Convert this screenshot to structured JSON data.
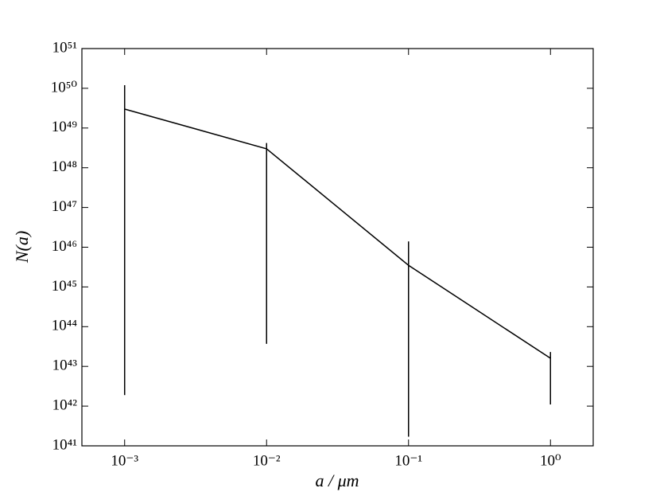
{
  "chart_data": {
    "type": "errorbar",
    "xlabel": "a / μm",
    "ylabel": "N(a)",
    "xscale": "log",
    "yscale": "log",
    "xlim": [
      0.0005,
      2
    ],
    "ylim": [
      1e+41,
      1e+51
    ],
    "xticks": [
      {
        "value": 0.001,
        "label": "10⁻³"
      },
      {
        "value": 0.01,
        "label": "10⁻²"
      },
      {
        "value": 0.1,
        "label": "10⁻¹"
      },
      {
        "value": 1,
        "label": "10⁰"
      }
    ],
    "yticks": [
      {
        "value": 1e+41,
        "label": "10⁴¹"
      },
      {
        "value": 1e+42,
        "label": "10⁴²"
      },
      {
        "value": 1e+43,
        "label": "10⁴³"
      },
      {
        "value": 1e+44,
        "label": "10⁴⁴"
      },
      {
        "value": 1e+45,
        "label": "10⁴⁵"
      },
      {
        "value": 1e+46,
        "label": "10⁴⁶"
      },
      {
        "value": 1e+47,
        "label": "10⁴⁷"
      },
      {
        "value": 1e+48,
        "label": "10⁴⁸"
      },
      {
        "value": 1e+49,
        "label": "10⁴⁹"
      },
      {
        "value": 1e+50,
        "label": "10⁵⁰"
      },
      {
        "value": 1e+51,
        "label": "10⁵¹"
      }
    ],
    "x": [
      0.001,
      0.01,
      0.1,
      1
    ],
    "series": [
      {
        "color": "#000000",
        "values": [
          3e+49,
          3e+48,
          3.5e+45,
          1.6e+43
        ],
        "low": [
          1.9e+42,
          3.7e+43,
          1.7e+41,
          1.1e+42
        ],
        "high": [
          1.2e+50,
          4.2e+48,
          1.4e+46,
          2.3e+43
        ]
      }
    ]
  }
}
